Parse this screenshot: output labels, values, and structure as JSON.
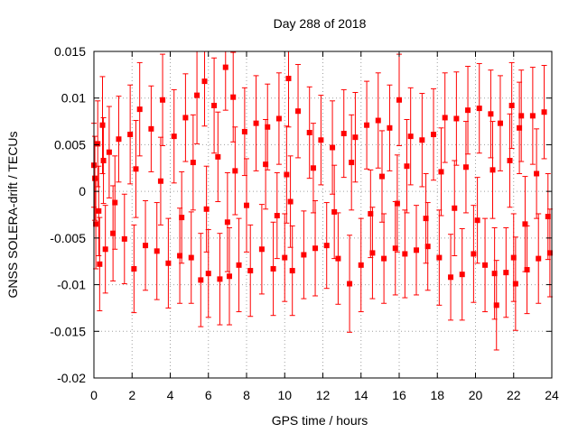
{
  "chart_data": {
    "type": "scatter",
    "title": "Day 288 of 2018",
    "xlabel": "GPS time / hours",
    "ylabel": "GNSS SOLERA-drift / TECUs",
    "xlim": [
      0,
      24
    ],
    "ylim": [
      -0.02,
      0.015
    ],
    "xticks": [
      "0",
      "2",
      "4",
      "6",
      "8",
      "10",
      "12",
      "14",
      "16",
      "18",
      "20",
      "22",
      "24"
    ],
    "yticks": [
      "0.015",
      "0.01",
      "0.005",
      "0",
      "-0.005",
      "-0.01",
      "-0.015",
      "-0.02"
    ],
    "grid": true,
    "marker_color": "#ff0000",
    "series": [
      {
        "x": [
          0.0,
          0.1,
          0.2,
          0.3,
          0.45,
          0.6,
          0.8,
          1.0,
          1.3,
          1.6,
          1.9,
          2.1,
          2.4,
          2.7,
          3.0,
          3.3,
          3.6,
          3.9,
          4.2,
          4.5,
          4.8,
          5.1,
          5.4,
          5.6,
          5.8,
          6.0,
          6.3,
          6.6,
          6.9,
          7.1,
          7.3,
          7.6,
          7.9,
          8.2,
          8.5,
          8.8,
          9.1,
          9.4,
          9.7,
          10.0,
          10.2,
          10.4,
          10.7,
          11.0,
          11.3,
          11.6,
          11.9,
          12.2,
          12.5,
          12.8,
          13.1,
          13.4,
          13.7,
          14.0,
          14.3,
          14.6,
          14.9,
          15.2,
          15.5,
          15.8,
          16.0,
          16.3,
          16.6,
          16.9,
          17.2,
          17.5,
          17.8,
          18.1,
          18.4,
          18.7,
          19.0,
          19.3,
          19.6,
          19.9,
          20.2,
          20.5,
          20.8,
          21.0,
          21.3,
          21.6,
          21.9,
          22.1,
          22.4,
          22.7,
          23.0,
          23.3,
          23.6,
          23.9,
          0.05,
          0.25,
          0.5,
          1.1,
          2.2,
          3.5,
          4.6,
          5.2,
          5.9,
          6.5,
          7.0,
          7.4,
          8.0,
          9.0,
          9.6,
          10.1,
          10.3,
          11.5,
          12.6,
          13.5,
          14.5,
          15.1,
          15.9,
          16.4,
          17.4,
          18.2,
          18.9,
          19.5,
          20.1,
          20.9,
          21.1,
          21.8,
          22.0,
          22.3,
          22.6,
          23.2,
          23.8
        ],
        "y": [
          0.0028,
          -0.0035,
          0.0051,
          -0.0078,
          0.0071,
          -0.0062,
          0.0042,
          -0.0045,
          0.0056,
          -0.0051,
          0.0061,
          -0.0083,
          0.0088,
          -0.0058,
          0.0067,
          -0.0064,
          0.0098,
          -0.0077,
          0.0059,
          -0.0069,
          0.0079,
          -0.0071,
          0.0103,
          -0.0095,
          0.0118,
          -0.0088,
          0.0092,
          -0.0094,
          0.0133,
          -0.0091,
          0.0101,
          -0.0079,
          0.0064,
          -0.0085,
          0.0073,
          -0.0062,
          0.0069,
          -0.0083,
          0.0078,
          -0.0071,
          0.0121,
          -0.0085,
          0.0086,
          -0.0068,
          0.0063,
          -0.0061,
          0.0055,
          -0.0058,
          0.0047,
          -0.0072,
          0.0062,
          -0.0099,
          0.0058,
          -0.0079,
          0.0071,
          -0.0066,
          0.0076,
          -0.0072,
          0.0068,
          -0.0061,
          0.0098,
          -0.0067,
          0.0059,
          -0.0063,
          0.0055,
          -0.0059,
          0.0061,
          -0.0071,
          0.0079,
          -0.0092,
          0.0078,
          -0.0089,
          0.0087,
          -0.0067,
          0.0089,
          -0.0079,
          0.0083,
          -0.0088,
          0.0073,
          -0.0087,
          0.0092,
          -0.0099,
          0.0081,
          -0.0084,
          0.0081,
          -0.0072,
          0.0085,
          -0.0066,
          0.0014,
          -0.0021,
          0.0033,
          -0.0012,
          0.0024,
          0.0011,
          -0.0028,
          0.0031,
          -0.0019,
          0.0037,
          -0.0033,
          0.0022,
          -0.0015,
          0.0029,
          -0.0026,
          0.0018,
          -0.0011,
          0.0025,
          -0.0022,
          0.0031,
          -0.0024,
          0.0016,
          -0.0013,
          0.0027,
          -0.0029,
          0.0021,
          -0.0018,
          0.0026,
          -0.0031,
          0.0023,
          -0.0122,
          0.0033,
          -0.0071,
          0.0068,
          -0.0035,
          0.0019,
          -0.0027
        ],
        "err": [
          0.0045,
          0.0048,
          0.0046,
          0.005,
          0.0052,
          0.0047,
          0.0049,
          0.0051,
          0.0046,
          0.0048,
          0.0053,
          0.0047,
          0.005,
          0.0048,
          0.0046,
          0.0052,
          0.0049,
          0.0048,
          0.005,
          0.0051,
          0.0047,
          0.0049,
          0.0052,
          0.005,
          0.0048,
          0.0047,
          0.0051,
          0.0049,
          0.0046,
          0.0052,
          0.0048,
          0.005,
          0.0047,
          0.0049,
          0.0051,
          0.0048,
          0.0046,
          0.005,
          0.0049,
          0.0047,
          0.0052,
          0.0048,
          0.005,
          0.0047,
          0.0049,
          0.0051,
          0.0048,
          0.0046,
          0.005,
          0.0049,
          0.0047,
          0.0052,
          0.0048,
          0.005,
          0.0047,
          0.0049,
          0.0051,
          0.0048,
          0.0046,
          0.005,
          0.0049,
          0.0047,
          0.0052,
          0.0048,
          0.005,
          0.0047,
          0.0049,
          0.0051,
          0.0048,
          0.0046,
          0.005,
          0.0049,
          0.0047,
          0.0052,
          0.0048,
          0.005,
          0.0047,
          0.0049,
          0.0051,
          0.0048,
          0.0046,
          0.005,
          0.0049,
          0.0047,
          0.0052,
          0.0048,
          0.005,
          0.0047,
          0.0045,
          0.0048,
          0.0046,
          0.005,
          0.0052,
          0.0047,
          0.0049,
          0.0051,
          0.0046,
          0.0048,
          0.0053,
          0.0047,
          0.005,
          0.0048,
          0.0046,
          0.0052,
          0.0049,
          0.0048,
          0.005,
          0.0051,
          0.0047,
          0.0049,
          0.0052,
          0.005,
          0.0048,
          0.0047,
          0.0051,
          0.0049,
          0.0046,
          0.0052,
          0.0048,
          0.005,
          0.0047,
          0.0049,
          0.0051,
          0.0048,
          0.0046
        ]
      }
    ]
  }
}
